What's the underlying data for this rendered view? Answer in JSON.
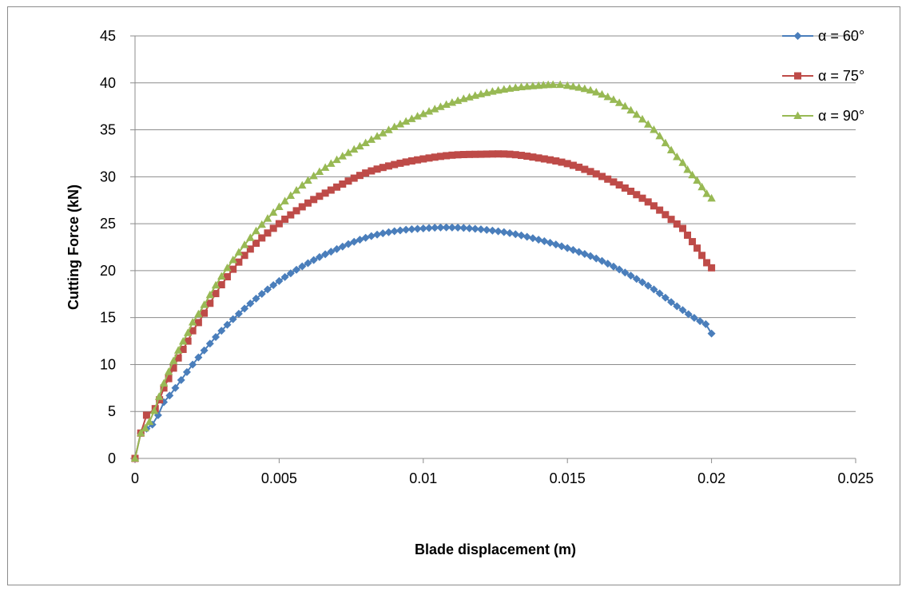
{
  "chart_data": {
    "type": "scatter",
    "title": "",
    "xlabel": "Blade displacement (m)",
    "ylabel": "Cutting Force (kN)",
    "xlim": [
      0,
      0.025
    ],
    "ylim": [
      0,
      45
    ],
    "x_ticks": [
      0,
      0.005,
      0.01,
      0.015,
      0.02,
      0.025
    ],
    "x_tick_labels": [
      "0",
      "0.005",
      "0.01",
      "0.015",
      "0.02",
      "0.025"
    ],
    "y_ticks": [
      0,
      5,
      10,
      15,
      20,
      25,
      30,
      35,
      40,
      45
    ],
    "y_tick_labels": [
      "0",
      "5",
      "10",
      "15",
      "20",
      "25",
      "30",
      "35",
      "40",
      "45"
    ],
    "grid": "horizontal",
    "legend_position": "top-right",
    "series": [
      {
        "name": "α = 60°",
        "color": "#4a7ebb",
        "marker": "diamond",
        "x": [
          0,
          0.0002,
          0.0006,
          0.001,
          0.002,
          0.003,
          0.004,
          0.005,
          0.006,
          0.007,
          0.008,
          0.009,
          0.01,
          0.011,
          0.012,
          0.013,
          0.014,
          0.015,
          0.016,
          0.017,
          0.018,
          0.019,
          0.0198,
          0.02
        ],
        "y": [
          0,
          2.7,
          3.6,
          6,
          10,
          13.6,
          16.5,
          18.9,
          20.8,
          22.3,
          23.5,
          24.2,
          24.5,
          24.6,
          24.4,
          24,
          23.3,
          22.4,
          21.3,
          19.8,
          18,
          15.8,
          14.3,
          13.3
        ]
      },
      {
        "name": "α = 75°",
        "color": "#be4b48",
        "marker": "square",
        "x": [
          0,
          0.0002,
          0.0004,
          0.0007,
          0.001,
          0.0015,
          0.002,
          0.003,
          0.004,
          0.005,
          0.006,
          0.007,
          0.008,
          0.009,
          0.01,
          0.011,
          0.012,
          0.013,
          0.014,
          0.015,
          0.016,
          0.017,
          0.018,
          0.019,
          0.0195,
          0.02
        ],
        "y": [
          0,
          2.7,
          4.6,
          5.3,
          7.5,
          10.7,
          13.6,
          18.5,
          22.3,
          25,
          27.2,
          28.9,
          30.4,
          31.3,
          31.9,
          32.3,
          32.4,
          32.4,
          32,
          31.4,
          30.3,
          28.8,
          26.9,
          24.5,
          22.4,
          20.3
        ]
      },
      {
        "name": "α = 90°",
        "color": "#98b954",
        "marker": "triangle",
        "x": [
          0,
          0.0002,
          0.0005,
          0.001,
          0.0015,
          0.002,
          0.003,
          0.004,
          0.005,
          0.006,
          0.007,
          0.008,
          0.009,
          0.01,
          0.011,
          0.012,
          0.013,
          0.014,
          0.0145,
          0.015,
          0.016,
          0.017,
          0.018,
          0.019,
          0.0195,
          0.02
        ],
        "y": [
          0,
          2.7,
          3.9,
          8,
          11.5,
          14.5,
          19.4,
          23.5,
          26.8,
          29.6,
          31.8,
          33.6,
          35.3,
          36.7,
          37.9,
          38.8,
          39.4,
          39.7,
          39.8,
          39.7,
          39,
          37.5,
          35,
          31.5,
          29.6,
          27.7
        ]
      }
    ]
  }
}
